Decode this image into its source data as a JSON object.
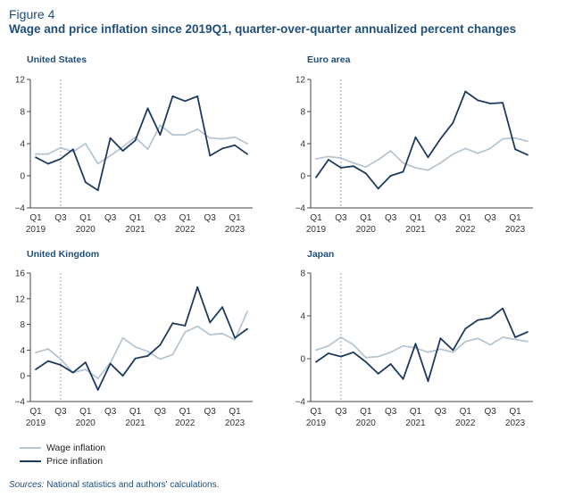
{
  "header": {
    "figure_label": "Figure 4",
    "title": "Wage and price inflation since 2019Q1, quarter-over-quarter annualized percent changes"
  },
  "legend": {
    "wage": "Wage inflation",
    "price": "Price inflation"
  },
  "sources": {
    "label": "Sources:",
    "text": " National statistics and authors' calculations."
  },
  "colors": {
    "wage": "#b8c6d2",
    "price": "#1f3a5f",
    "axis": "#444444",
    "marker_line": "#aaaaaa"
  },
  "x_ticks": [
    {
      "top": "Q1",
      "bottom": "2019"
    },
    {
      "top": "Q3",
      "bottom": ""
    },
    {
      "top": "Q1",
      "bottom": "2020"
    },
    {
      "top": "Q3",
      "bottom": ""
    },
    {
      "top": "Q1",
      "bottom": "2021"
    },
    {
      "top": "Q3",
      "bottom": ""
    },
    {
      "top": "Q1",
      "bottom": "2022"
    },
    {
      "top": "Q3",
      "bottom": ""
    },
    {
      "top": "Q1",
      "bottom": "2023"
    }
  ],
  "chart_data": [
    {
      "type": "line",
      "title": "United States",
      "x": [
        "2019Q1",
        "2019Q2",
        "2019Q3",
        "2019Q4",
        "2020Q1",
        "2020Q2",
        "2020Q3",
        "2020Q4",
        "2021Q1",
        "2021Q2",
        "2021Q3",
        "2021Q4",
        "2022Q1",
        "2022Q2",
        "2022Q3",
        "2022Q4",
        "2023Q1",
        "2023Q2"
      ],
      "ylim": [
        -4,
        12
      ],
      "yticks": [
        -4,
        0,
        4,
        8,
        12
      ],
      "marker_x": "2019Q3",
      "series": [
        {
          "key": "wage",
          "name": "Wage inflation",
          "values": [
            2.7,
            2.7,
            3.5,
            3.0,
            4.0,
            1.5,
            2.5,
            3.6,
            4.8,
            3.3,
            6.3,
            5.1,
            5.1,
            5.8,
            4.7,
            4.6,
            4.8,
            4.0
          ]
        },
        {
          "key": "price",
          "name": "Price inflation",
          "values": [
            2.3,
            1.5,
            2.1,
            3.3,
            -0.8,
            -1.8,
            4.7,
            3.1,
            4.4,
            8.4,
            5.1,
            9.9,
            9.3,
            9.9,
            2.5,
            3.4,
            3.8,
            2.7
          ]
        }
      ]
    },
    {
      "type": "line",
      "title": "Euro area",
      "x": [
        "2019Q1",
        "2019Q2",
        "2019Q3",
        "2019Q4",
        "2020Q1",
        "2020Q2",
        "2020Q3",
        "2020Q4",
        "2021Q1",
        "2021Q2",
        "2021Q3",
        "2021Q4",
        "2022Q1",
        "2022Q2",
        "2022Q3",
        "2022Q4",
        "2023Q1",
        "2023Q2"
      ],
      "ylim": [
        -4,
        12
      ],
      "yticks": [
        -4,
        0,
        4,
        8,
        12
      ],
      "marker_x": "2019Q3",
      "series": [
        {
          "key": "wage",
          "name": "Wage inflation",
          "values": [
            2.1,
            2.4,
            2.2,
            1.6,
            1.1,
            2.0,
            3.1,
            1.6,
            1.0,
            0.7,
            1.6,
            2.7,
            3.4,
            2.8,
            3.4,
            4.6,
            4.7,
            4.3
          ]
        },
        {
          "key": "price",
          "name": "Price inflation",
          "values": [
            -0.2,
            2.0,
            1.0,
            1.2,
            0.3,
            -1.6,
            0.0,
            0.5,
            4.8,
            2.3,
            4.6,
            6.6,
            10.5,
            9.4,
            9.0,
            9.1,
            3.3,
            2.6
          ]
        }
      ]
    },
    {
      "type": "line",
      "title": "United Kingdom",
      "x": [
        "2019Q1",
        "2019Q2",
        "2019Q3",
        "2019Q4",
        "2020Q1",
        "2020Q2",
        "2020Q3",
        "2020Q4",
        "2021Q1",
        "2021Q2",
        "2021Q3",
        "2021Q4",
        "2022Q1",
        "2022Q2",
        "2022Q3",
        "2022Q4",
        "2023Q1",
        "2023Q2"
      ],
      "ylim": [
        -4,
        16
      ],
      "yticks": [
        -4,
        0,
        4,
        8,
        12,
        16
      ],
      "marker_x": "2019Q3",
      "series": [
        {
          "key": "wage",
          "name": "Wage inflation",
          "values": [
            3.6,
            4.2,
            2.6,
            0.5,
            1.0,
            -0.4,
            2.0,
            5.9,
            4.5,
            3.8,
            2.6,
            3.3,
            6.8,
            7.7,
            6.4,
            6.6,
            5.6,
            10.0
          ]
        },
        {
          "key": "price",
          "name": "Price inflation",
          "values": [
            1.0,
            2.3,
            1.7,
            0.5,
            2.1,
            -2.2,
            1.9,
            0.0,
            2.7,
            3.1,
            4.8,
            8.2,
            7.8,
            13.8,
            8.3,
            10.7,
            5.9,
            7.3
          ]
        }
      ]
    },
    {
      "type": "line",
      "title": "Japan",
      "x": [
        "2019Q1",
        "2019Q2",
        "2019Q3",
        "2019Q4",
        "2020Q1",
        "2020Q2",
        "2020Q3",
        "2020Q4",
        "2021Q1",
        "2021Q2",
        "2021Q3",
        "2021Q4",
        "2022Q1",
        "2022Q2",
        "2022Q3",
        "2022Q4",
        "2023Q1",
        "2023Q2"
      ],
      "ylim": [
        -4,
        8
      ],
      "yticks": [
        -4,
        0,
        4,
        8
      ],
      "marker_x": "2019Q3",
      "series": [
        {
          "key": "wage",
          "name": "Wage inflation",
          "values": [
            0.8,
            1.2,
            2.0,
            1.3,
            0.1,
            0.2,
            0.6,
            1.2,
            1.0,
            0.6,
            0.9,
            0.6,
            1.6,
            1.9,
            1.3,
            2.0,
            1.8,
            1.6
          ]
        },
        {
          "key": "price",
          "name": "Price inflation",
          "values": [
            -0.3,
            0.5,
            0.2,
            0.6,
            -0.3,
            -1.4,
            -0.5,
            -1.9,
            1.4,
            -2.1,
            1.9,
            0.8,
            2.8,
            3.6,
            3.8,
            4.7,
            2.0,
            2.5
          ]
        }
      ]
    }
  ]
}
